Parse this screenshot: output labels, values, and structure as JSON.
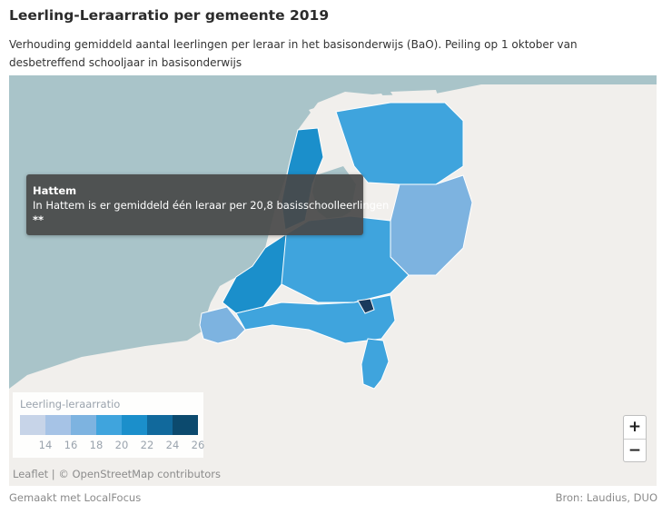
{
  "header": {
    "title": "Leerling-Leraarratio per gemeente 2019",
    "subtitle": "Verhouding gemiddeld aantal leerlingen per leraar in het basisonderwijs (BaO). Peiling op 1 oktober van desbetreffend schooljaar in basisonderwijs"
  },
  "map": {
    "colors": {
      "sea": "#a9c4c9",
      "land": "#f1efec",
      "highlight": "#1a3a5c",
      "border": "#ffffff"
    }
  },
  "tooltip": {
    "title": "Hattem",
    "text": "In Hattem is er gemiddeld één leraar per 20,8 basisschoolleerlingen",
    "note": "**"
  },
  "legend": {
    "title": "Leerling-leraarratio",
    "colors": [
      "#c7d4e8",
      "#a6c3e6",
      "#7db3e0",
      "#3fa4dd",
      "#1b8fcb",
      "#11699c",
      "#0c4a6e"
    ],
    "ticks": [
      "14",
      "16",
      "18",
      "20",
      "22",
      "24",
      "26"
    ]
  },
  "zoom": {
    "in_label": "+",
    "out_label": "−"
  },
  "attribution": {
    "leaflet": "Leaflet",
    "separator": " | © ",
    "osm": "OpenStreetMap contributors"
  },
  "footer": {
    "made_with": "Gemaakt met LocalFocus",
    "source": "Bron: Laudius, DUO"
  }
}
